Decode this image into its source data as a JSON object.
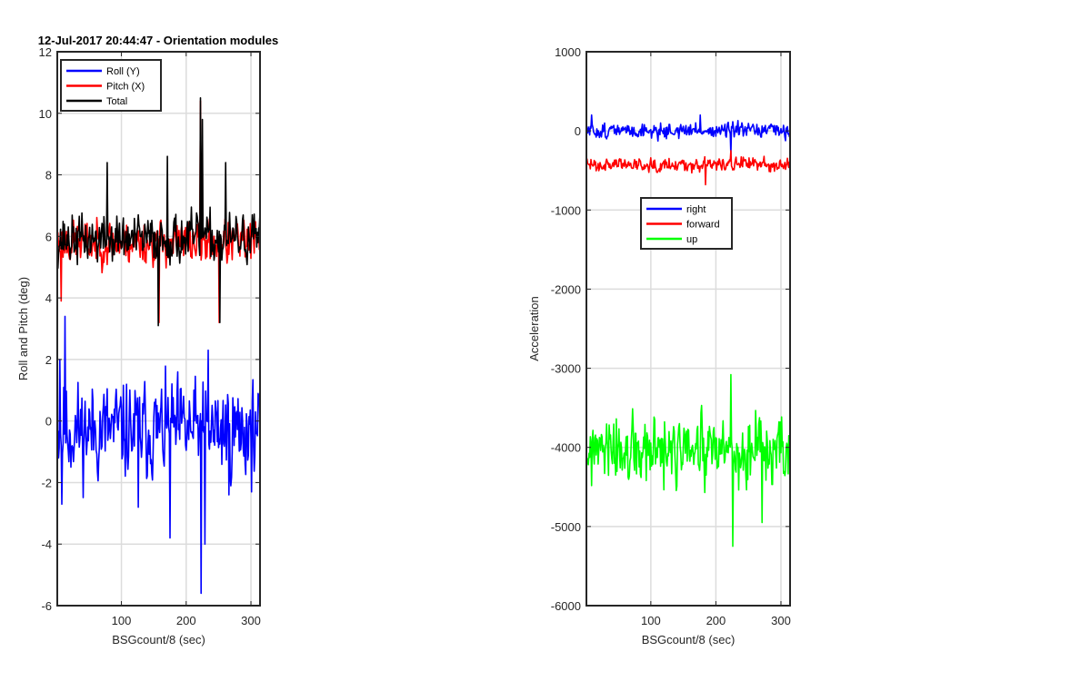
{
  "figure_title": "12-Jul-2017 20:44:47 - Orientation modules",
  "chart_data": [
    {
      "type": "line",
      "title": "12-Jul-2017 20:44:47 - Orientation modules",
      "xlabel": "BSGcount/8 (sec)",
      "ylabel": "Roll and Pitch (deg)",
      "xlim": [
        1,
        314
      ],
      "ylim": [
        -6,
        12
      ],
      "xticks": [
        100,
        200,
        300
      ],
      "yticks": [
        -6,
        -4,
        -2,
        0,
        2,
        4,
        6,
        8,
        10,
        12
      ],
      "grid": true,
      "legend": "top-left",
      "series": [
        {
          "name": "Roll (Y)",
          "color": "#0000ff",
          "mean": -0.3,
          "spread": 1.0,
          "min": -5.6,
          "max": 3.4,
          "seed": 11,
          "spikes": [
            [
              4,
              2.0
            ],
            [
              7,
              -2.7
            ],
            [
              12,
              3.4
            ],
            [
              125,
              -2.8
            ],
            [
              174,
              -3.8
            ],
            [
              222,
              -5.6
            ],
            [
              228,
              -4.0
            ],
            [
              233,
              2.3
            ],
            [
              265,
              -2.4
            ]
          ]
        },
        {
          "name": "Pitch (X)",
          "color": "#ff0000",
          "mean": 5.8,
          "spread": 0.45,
          "min": 3.2,
          "max": 10.4,
          "seed": 23,
          "spikes": [
            [
              6,
              3.9
            ],
            [
              157,
              3.2
            ],
            [
              221,
              10.4
            ],
            [
              250,
              3.2
            ]
          ]
        },
        {
          "name": "Total",
          "color": "#000000",
          "mean": 5.9,
          "spread": 0.5,
          "min": 3.1,
          "max": 10.5,
          "seed": 37,
          "spikes": [
            [
              77,
              8.4
            ],
            [
              156,
              3.1
            ],
            [
              170,
              8.6
            ],
            [
              221,
              10.5
            ],
            [
              224,
              9.8
            ],
            [
              251,
              3.2
            ],
            [
              260,
              8.4
            ]
          ]
        }
      ]
    },
    {
      "type": "line",
      "title": "",
      "xlabel": "BSGcount/8 (sec)",
      "ylabel": "Acceleration",
      "xlim": [
        1,
        314
      ],
      "ylim": [
        -6000,
        1000
      ],
      "xticks": [
        100,
        200,
        300
      ],
      "yticks": [
        -6000,
        -5000,
        -4000,
        -3000,
        -2000,
        -1000,
        0,
        1000
      ],
      "grid": true,
      "legend": "center",
      "series": [
        {
          "name": "right",
          "color": "#0000ff",
          "mean": 0,
          "spread": 60,
          "min": -320,
          "max": 220,
          "seed": 51,
          "spikes": [
            [
              8,
              200
            ],
            [
              175,
              200
            ],
            [
              222,
              -300
            ]
          ]
        },
        {
          "name": "forward",
          "color": "#ff0000",
          "mean": -420,
          "spread": 55,
          "min": -680,
          "max": -230,
          "seed": 63,
          "spikes": [
            [
              183,
              -680
            ],
            [
              222,
              -250
            ]
          ]
        },
        {
          "name": "up",
          "color": "#00ff00",
          "mean": -4080,
          "spread": 280,
          "min": -5250,
          "max": -3070,
          "seed": 77,
          "spikes": [
            [
              222,
              -3080
            ],
            [
              225,
              -5250
            ],
            [
              270,
              -4950
            ]
          ]
        }
      ]
    }
  ]
}
